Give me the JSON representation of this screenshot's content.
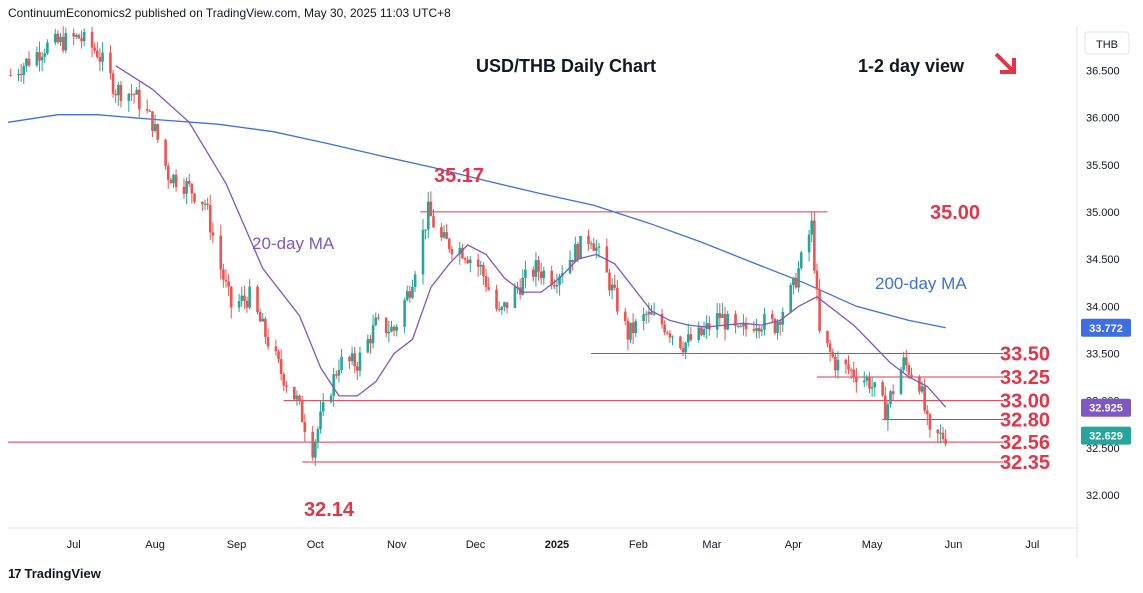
{
  "header": {
    "attribution": "ContinuumEconomics2 published on TradingView.com, May 30, 2025 11:03 UTC+8"
  },
  "footer": {
    "brand": "TradingView"
  },
  "colors": {
    "up": "#26a69a",
    "down": "#ef5350",
    "ma20": "#7e57c2",
    "ma200": "#3f6ee0",
    "level": "#e3354a",
    "text": "#131722",
    "axis": "#787b86"
  },
  "chart_data": {
    "type": "candlestick",
    "title": "USD/THB Daily Chart",
    "subtitle": "1-2 day view",
    "currency": "THB",
    "x_ticks": [
      "Jul",
      "Aug",
      "Sep",
      "Oct",
      "Nov",
      "Dec",
      "2025",
      "Feb",
      "Mar",
      "Apr",
      "May",
      "Jun",
      "Jul"
    ],
    "y_ticks": [
      "36.500",
      "36.000",
      "35.500",
      "35.000",
      "34.500",
      "34.000",
      "33.500",
      "33.000",
      "32.500",
      "32.000"
    ],
    "ylim": [
      31.65,
      36.96
    ],
    "xlim": [
      "2024-06-06",
      "2025-07-18"
    ],
    "price_badges": [
      {
        "label": "33.772",
        "value": 33.772,
        "color": "#3f6ee0",
        "text_color": "#ffffff"
      },
      {
        "label": "32.925",
        "value": 32.925,
        "color": "#7e57c2",
        "text_color": "#ffffff"
      },
      {
        "label": "32.629",
        "value": 32.629,
        "color": "#26a69a",
        "text_color": "#ffffff"
      }
    ],
    "levels": [
      {
        "label": "35.00",
        "value": 35.0,
        "from": "2024-11-10",
        "to": "2025-04-14"
      },
      {
        "label": "33.50",
        "value": 33.5,
        "from": "2025-01-14",
        "to": "2025-06-20"
      },
      {
        "label": "33.25",
        "value": 33.25,
        "from": "2025-04-10",
        "to": "2025-06-20"
      },
      {
        "label": "33.00",
        "value": 33.0,
        "from": "2024-09-19",
        "to": "2025-06-20"
      },
      {
        "label": "32.80",
        "value": 32.8,
        "from": "2025-05-05",
        "to": "2025-06-20"
      },
      {
        "label": "32.56",
        "value": 32.56,
        "from": "2024-06-06",
        "to": "2025-06-20"
      },
      {
        "label": "32.35",
        "value": 32.35,
        "from": "2024-09-26",
        "to": "2025-06-20"
      }
    ],
    "annotations": [
      {
        "text": "35.17",
        "value": 35.17,
        "date": "2024-11-15",
        "role": "high"
      },
      {
        "text": "32.14",
        "value": 32.14,
        "date": "2024-10-01",
        "role": "low"
      },
      {
        "text": "20-day MA",
        "series": "ma20"
      },
      {
        "text": "200-day MA",
        "series": "ma200"
      }
    ],
    "price_path": [
      [
        "2024-06-07",
        36.45
      ],
      [
        "2024-06-20",
        36.75
      ],
      [
        "2024-07-03",
        36.85
      ],
      [
        "2024-07-10",
        36.7
      ],
      [
        "2024-07-17",
        36.3
      ],
      [
        "2024-07-24",
        36.25
      ],
      [
        "2024-07-31",
        35.95
      ],
      [
        "2024-08-06",
        35.4
      ],
      [
        "2024-08-12",
        35.3
      ],
      [
        "2024-08-20",
        35.1
      ],
      [
        "2024-08-26",
        34.4
      ],
      [
        "2024-08-30",
        34.0
      ],
      [
        "2024-09-06",
        34.1
      ],
      [
        "2024-09-12",
        33.7
      ],
      [
        "2024-09-18",
        33.3
      ],
      [
        "2024-09-24",
        33.0
      ],
      [
        "2024-09-30",
        32.5
      ],
      [
        "2024-10-03",
        32.8
      ],
      [
        "2024-10-10",
        33.4
      ],
      [
        "2024-10-17",
        33.4
      ],
      [
        "2024-10-24",
        33.8
      ],
      [
        "2024-10-31",
        33.75
      ],
      [
        "2024-11-06",
        34.2
      ],
      [
        "2024-11-13",
        35.0
      ],
      [
        "2024-11-18",
        34.7
      ],
      [
        "2024-11-26",
        34.6
      ],
      [
        "2024-12-03",
        34.4
      ],
      [
        "2024-12-10",
        33.9
      ],
      [
        "2024-12-17",
        34.2
      ],
      [
        "2024-12-24",
        34.4
      ],
      [
        "2024-12-31",
        34.3
      ],
      [
        "2025-01-07",
        34.55
      ],
      [
        "2025-01-14",
        34.75
      ],
      [
        "2025-01-21",
        34.25
      ],
      [
        "2025-01-28",
        33.7
      ],
      [
        "2025-02-04",
        33.9
      ],
      [
        "2025-02-11",
        33.8
      ],
      [
        "2025-02-18",
        33.6
      ],
      [
        "2025-02-25",
        33.7
      ],
      [
        "2025-03-04",
        33.9
      ],
      [
        "2025-03-11",
        33.7
      ],
      [
        "2025-03-18",
        33.85
      ],
      [
        "2025-03-25",
        33.8
      ],
      [
        "2025-04-01",
        34.2
      ],
      [
        "2025-04-08",
        34.85
      ],
      [
        "2025-04-11",
        33.7
      ],
      [
        "2025-04-17",
        33.4
      ],
      [
        "2025-04-24",
        33.3
      ],
      [
        "2025-04-30",
        33.2
      ],
      [
        "2025-05-06",
        32.9
      ],
      [
        "2025-05-13",
        33.4
      ],
      [
        "2025-05-19",
        33.2
      ],
      [
        "2025-05-23",
        32.6
      ],
      [
        "2025-05-29",
        32.63
      ]
    ],
    "ma20_path": [
      [
        "2024-07-17",
        36.55
      ],
      [
        "2024-07-31",
        36.3
      ],
      [
        "2024-08-14",
        35.95
      ],
      [
        "2024-08-28",
        35.3
      ],
      [
        "2024-09-11",
        34.4
      ],
      [
        "2024-09-25",
        33.9
      ],
      [
        "2024-10-03",
        33.35
      ],
      [
        "2024-10-10",
        33.05
      ],
      [
        "2024-10-17",
        33.05
      ],
      [
        "2024-10-24",
        33.2
      ],
      [
        "2024-10-31",
        33.5
      ],
      [
        "2024-11-07",
        33.65
      ],
      [
        "2024-11-14",
        34.2
      ],
      [
        "2024-11-21",
        34.45
      ],
      [
        "2024-11-28",
        34.65
      ],
      [
        "2024-12-05",
        34.55
      ],
      [
        "2024-12-12",
        34.3
      ],
      [
        "2024-12-19",
        34.15
      ],
      [
        "2024-12-26",
        34.15
      ],
      [
        "2025-01-02",
        34.3
      ],
      [
        "2025-01-09",
        34.5
      ],
      [
        "2025-01-16",
        34.55
      ],
      [
        "2025-01-23",
        34.45
      ],
      [
        "2025-01-30",
        34.2
      ],
      [
        "2025-02-06",
        33.95
      ],
      [
        "2025-02-13",
        33.85
      ],
      [
        "2025-02-20",
        33.8
      ],
      [
        "2025-02-27",
        33.78
      ],
      [
        "2025-03-06",
        33.8
      ],
      [
        "2025-03-13",
        33.82
      ],
      [
        "2025-03-20",
        33.8
      ],
      [
        "2025-03-27",
        33.85
      ],
      [
        "2025-04-03",
        34.0
      ],
      [
        "2025-04-10",
        34.1
      ],
      [
        "2025-04-17",
        33.95
      ],
      [
        "2025-04-24",
        33.8
      ],
      [
        "2025-05-01",
        33.6
      ],
      [
        "2025-05-08",
        33.4
      ],
      [
        "2025-05-15",
        33.25
      ],
      [
        "2025-05-22",
        33.15
      ],
      [
        "2025-05-29",
        32.93
      ]
    ],
    "ma200_path": [
      [
        "2024-06-06",
        35.95
      ],
      [
        "2024-06-25",
        36.03
      ],
      [
        "2024-07-10",
        36.03
      ],
      [
        "2024-08-01",
        35.98
      ],
      [
        "2024-08-25",
        35.93
      ],
      [
        "2024-09-15",
        35.85
      ],
      [
        "2024-10-05",
        35.73
      ],
      [
        "2024-10-25",
        35.6
      ],
      [
        "2024-11-15",
        35.47
      ],
      [
        "2024-12-05",
        35.33
      ],
      [
        "2024-12-25",
        35.2
      ],
      [
        "2025-01-15",
        35.07
      ],
      [
        "2025-02-05",
        34.88
      ],
      [
        "2025-02-25",
        34.68
      ],
      [
        "2025-03-15",
        34.48
      ],
      [
        "2025-04-05",
        34.25
      ],
      [
        "2025-04-25",
        34.0
      ],
      [
        "2025-05-15",
        33.85
      ],
      [
        "2025-05-29",
        33.772
      ]
    ]
  }
}
